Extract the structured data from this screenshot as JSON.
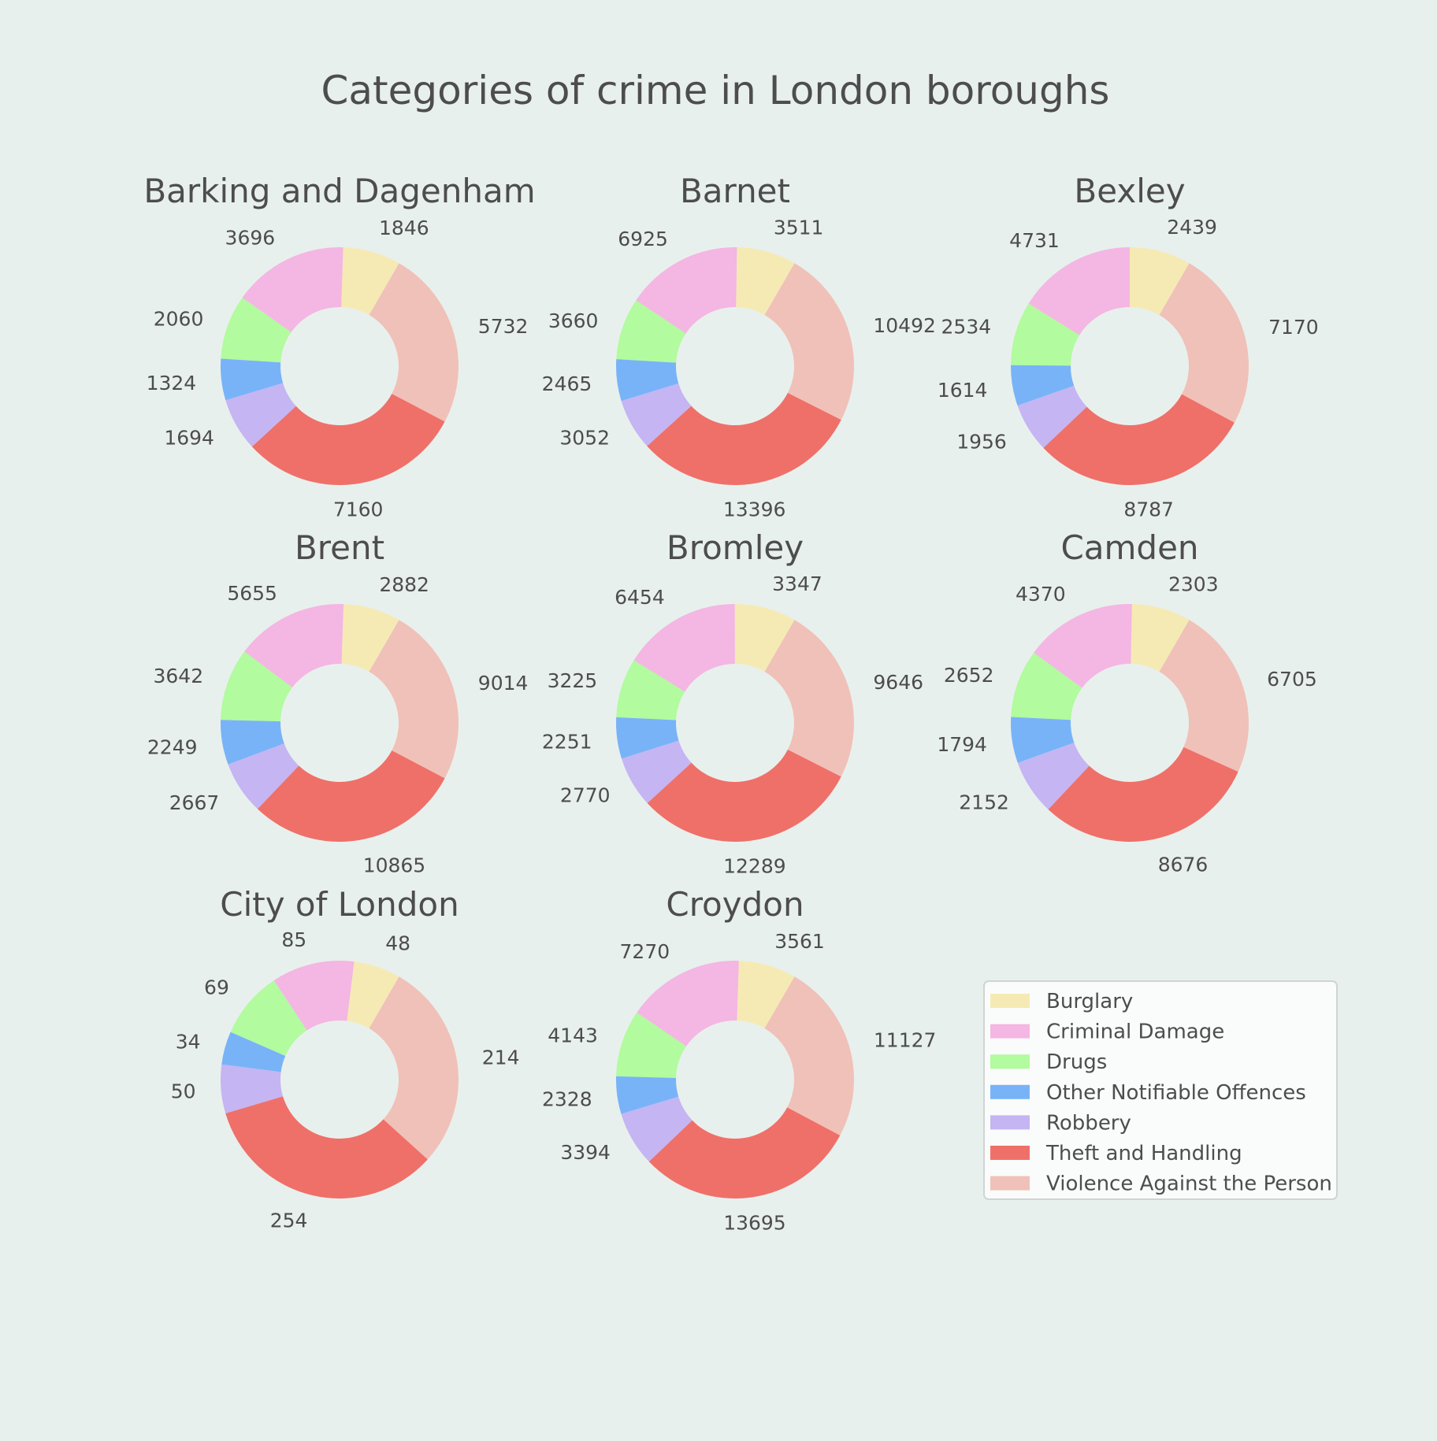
{
  "chart_data": {
    "type": "pie",
    "style": "donut",
    "title": "Categories of crime in London boroughs",
    "categories": [
      "Burglary",
      "Criminal Damage",
      "Drugs",
      "Other Notifiable Offences",
      "Robbery",
      "Theft and Handling",
      "Violence Against the Person"
    ],
    "colors": [
      "#f6eab4",
      "#f4b6e2",
      "#b2fb9f",
      "#78b3f8",
      "#c5b5f3",
      "#ef7069",
      "#f0c1b8"
    ],
    "legend_position": "bottom-right",
    "boroughs": [
      {
        "name": "Barking and Dagenham",
        "values": [
          1846,
          3696,
          2060,
          1324,
          1694,
          7160,
          5732
        ]
      },
      {
        "name": "Barnet",
        "values": [
          3511,
          6925,
          3660,
          2465,
          3052,
          13396,
          10492
        ]
      },
      {
        "name": "Bexley",
        "values": [
          2439,
          4731,
          2534,
          1614,
          1956,
          8787,
          7170
        ]
      },
      {
        "name": "Brent",
        "values": [
          2882,
          5655,
          3642,
          2249,
          2667,
          10865,
          9014
        ]
      },
      {
        "name": "Bromley",
        "values": [
          3347,
          6454,
          3225,
          2251,
          2770,
          12289,
          9646
        ]
      },
      {
        "name": "Camden",
        "values": [
          2303,
          4370,
          2652,
          1794,
          2152,
          8676,
          6705
        ]
      },
      {
        "name": "City of London",
        "values": [
          48,
          85,
          69,
          34,
          50,
          254,
          214
        ]
      },
      {
        "name": "Croydon",
        "values": [
          3561,
          7270,
          4143,
          2328,
          3394,
          13695,
          11127
        ]
      }
    ]
  }
}
